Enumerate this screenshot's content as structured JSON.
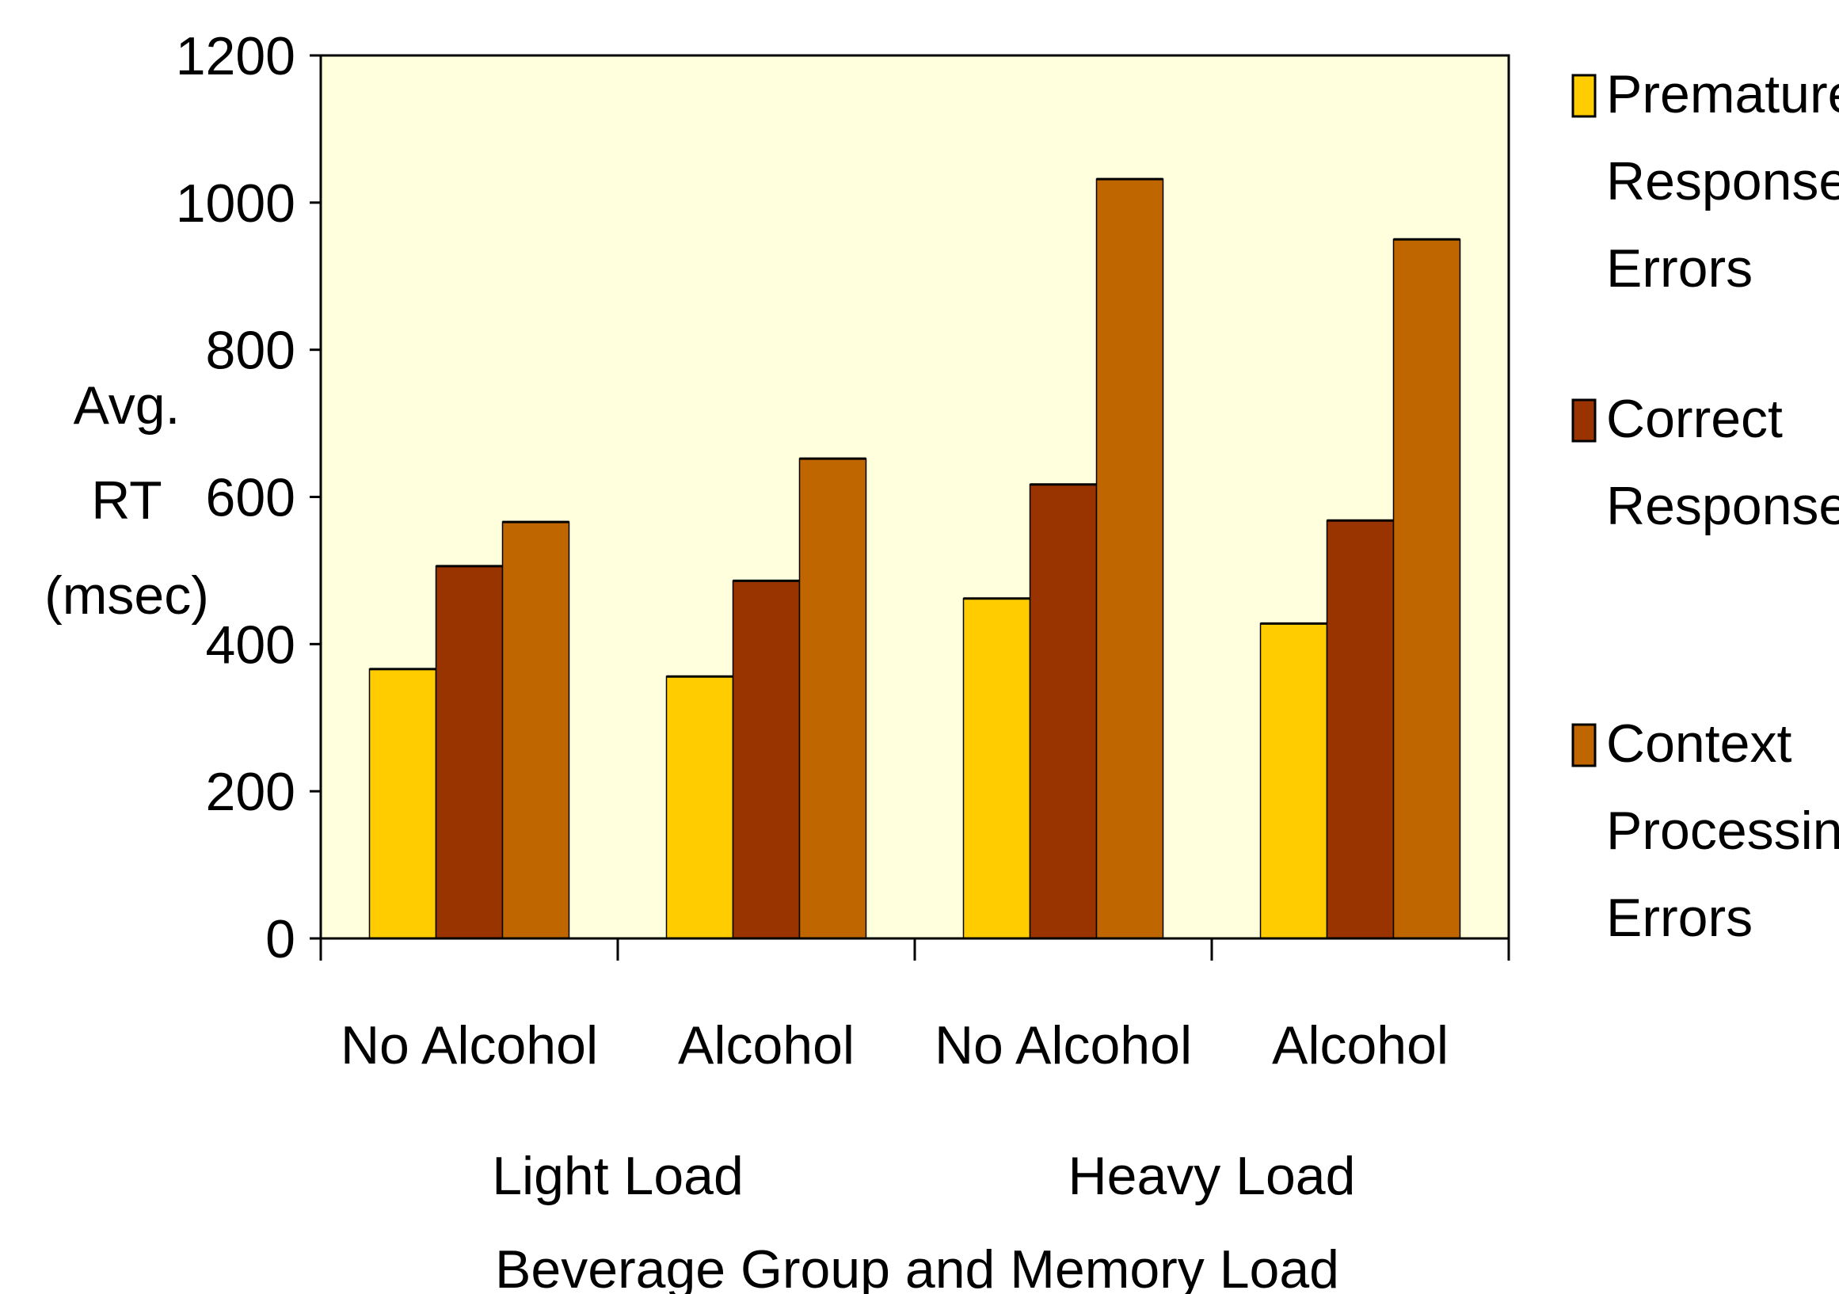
{
  "chart_data": {
    "type": "bar",
    "title": "",
    "xlabel": "Beverage Group and Memory Load",
    "ylabel": [
      "Avg.",
      "RT",
      "(msec)"
    ],
    "ylim": [
      0,
      1200
    ],
    "yticks": [
      0,
      200,
      400,
      600,
      800,
      1000,
      1200
    ],
    "ytick_labels": [
      "0",
      "200",
      "400",
      "600",
      "800",
      "1000",
      "1200"
    ],
    "categories": [
      "No Alcohol",
      "Alcohol",
      "No Alcohol",
      "Alcohol"
    ],
    "groups": [
      {
        "label": "Light Load",
        "categories": [
          0,
          1
        ]
      },
      {
        "label": "Heavy Load",
        "categories": [
          2,
          3
        ]
      }
    ],
    "series": [
      {
        "name": "Premature Response Errors",
        "label_lines": [
          "Premature",
          "Response",
          "Errors"
        ],
        "color": "#FFCC00",
        "values": [
          366,
          356,
          462,
          428
        ]
      },
      {
        "name": "Correct Responses",
        "label_lines": [
          "Correct",
          "Responses"
        ],
        "color": "#993300",
        "values": [
          506,
          486,
          617,
          568
        ]
      },
      {
        "name": "Context Processing Errors",
        "label_lines": [
          "Context",
          "Processing",
          "Errors"
        ],
        "color": "#C06600",
        "values": [
          566,
          652,
          1032,
          950
        ]
      }
    ],
    "plot_background": "#FFFFDD",
    "grid": false,
    "legend_position": "right"
  }
}
